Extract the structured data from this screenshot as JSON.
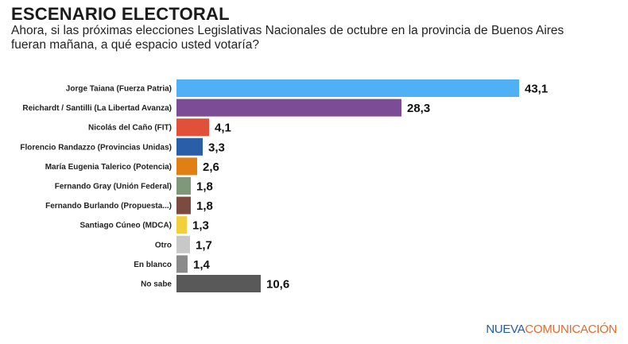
{
  "header": {
    "title": "ESCENARIO ELECTORAL",
    "subtitle": "Ahora, si las próximas elecciones Legislativas Nacionales de octubre en la provincia de Buenos Aires fueran mañana, a qué espacio usted votaría?"
  },
  "brand": {
    "part1": "NUEVA",
    "part2": "COMUNICACIÓN"
  },
  "chart_data": {
    "type": "bar",
    "orientation": "horizontal",
    "title": "ESCENARIO ELECTORAL",
    "subtitle": "Ahora, si las próximas elecciones Legislativas Nacionales de octubre en la provincia de Buenos Aires fueran mañana, a qué espacio usted votaría?",
    "categories": [
      "Jorge Taiana (Fuerza Patria)",
      "Reichardt / Santilli (La Libertad Avanza)",
      "Nicolás del Caño (FIT)",
      "Florencio Randazzo (Provincias Unidas)",
      "María Eugenia Talerico (Potencia)",
      "Fernando Gray (Unión Federal)",
      "Fernando Burlando (Propuesta...)",
      "Santiago Cúneo (MDCA)",
      "Otro",
      "En blanco",
      "No sabe"
    ],
    "values": [
      43.1,
      28.3,
      4.1,
      3.3,
      2.6,
      1.8,
      1.8,
      1.3,
      1.7,
      1.4,
      10.6
    ],
    "value_labels": [
      "43,1",
      "28,3",
      "4,1",
      "3,3",
      "2,6",
      "1,8",
      "1,8",
      "1,3",
      "1,7",
      "1,4",
      "10,6"
    ],
    "colors": [
      "#4fb0f5",
      "#7d4c96",
      "#e2503a",
      "#2b5ea8",
      "#e07f14",
      "#7f987a",
      "#7a4b3e",
      "#f3cf3a",
      "#c8c8c8",
      "#8a8a8a",
      "#595959"
    ],
    "xlabel": "",
    "ylabel": "",
    "grid": false,
    "legend": "none"
  }
}
